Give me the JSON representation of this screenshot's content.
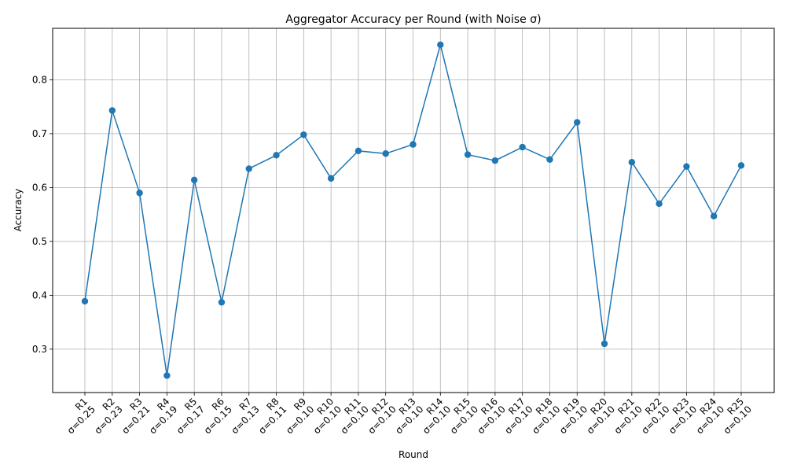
{
  "chart_data": {
    "type": "line",
    "title": "Aggregator Accuracy per Round (with Noise σ)",
    "xlabel": "Round",
    "ylabel": "Accuracy",
    "categories": [
      {
        "round": "R1",
        "sigma": "σ=0.25"
      },
      {
        "round": "R2",
        "sigma": "σ=0.23"
      },
      {
        "round": "R3",
        "sigma": "σ=0.21"
      },
      {
        "round": "R4",
        "sigma": "σ=0.19"
      },
      {
        "round": "R5",
        "sigma": "σ=0.17"
      },
      {
        "round": "R6",
        "sigma": "σ=0.15"
      },
      {
        "round": "R7",
        "sigma": "σ=0.13"
      },
      {
        "round": "R8",
        "sigma": "σ=0.11"
      },
      {
        "round": "R9",
        "sigma": "σ=0.10"
      },
      {
        "round": "R10",
        "sigma": "σ=0.10"
      },
      {
        "round": "R11",
        "sigma": "σ=0.10"
      },
      {
        "round": "R12",
        "sigma": "σ=0.10"
      },
      {
        "round": "R13",
        "sigma": "σ=0.10"
      },
      {
        "round": "R14",
        "sigma": "σ=0.10"
      },
      {
        "round": "R15",
        "sigma": "σ=0.10"
      },
      {
        "round": "R16",
        "sigma": "σ=0.10"
      },
      {
        "round": "R17",
        "sigma": "σ=0.10"
      },
      {
        "round": "R18",
        "sigma": "σ=0.10"
      },
      {
        "round": "R19",
        "sigma": "σ=0.10"
      },
      {
        "round": "R20",
        "sigma": "σ=0.10"
      },
      {
        "round": "R21",
        "sigma": "σ=0.10"
      },
      {
        "round": "R22",
        "sigma": "σ=0.10"
      },
      {
        "round": "R23",
        "sigma": "σ=0.10"
      },
      {
        "round": "R24",
        "sigma": "σ=0.10"
      },
      {
        "round": "R25",
        "sigma": "σ=0.10"
      }
    ],
    "series": [
      {
        "values": [
          0.389,
          0.743,
          0.59,
          0.251,
          0.614,
          0.387,
          0.635,
          0.66,
          0.698,
          0.617,
          0.668,
          0.663,
          0.68,
          0.865,
          0.661,
          0.65,
          0.675,
          0.652,
          0.721,
          0.31,
          0.647,
          0.57,
          0.639,
          0.547,
          0.641
        ],
        "color": "#1f77b4"
      }
    ],
    "yticks": [
      "0.3",
      "0.4",
      "0.5",
      "0.6",
      "0.7",
      "0.8"
    ],
    "ytick_values": [
      0.3,
      0.4,
      0.5,
      0.6,
      0.7,
      0.8
    ],
    "ylim": [
      0.2195,
      0.8955
    ],
    "grid": true,
    "marker": "circle"
  }
}
